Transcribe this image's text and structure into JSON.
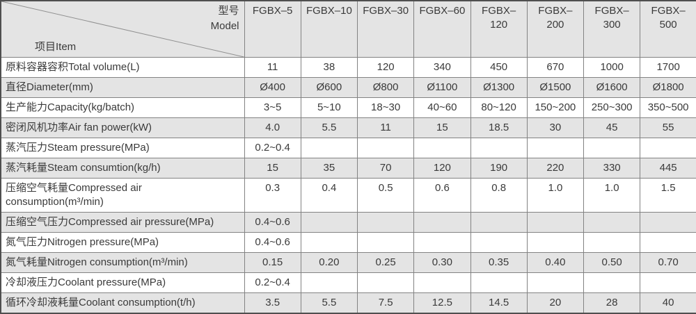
{
  "table": {
    "corner": {
      "model_label": "型号\nModel",
      "item_label": "项目Item"
    },
    "columns": [
      "FGBX–5",
      "FGBX–10",
      "FGBX–30",
      "FGBX–60",
      "FGBX–\n120",
      "FGBX–\n200",
      "FGBX–\n300",
      "FGBX–\n500"
    ],
    "rows": [
      {
        "label": "原料容器容积Total volume(L)",
        "values": [
          "11",
          "38",
          "120",
          "340",
          "450",
          "670",
          "1000",
          "1700"
        ]
      },
      {
        "label": "直径Diameter(mm)",
        "values": [
          "Ø400",
          "Ø600",
          "Ø800",
          "Ø1100",
          "Ø1300",
          "Ø1500",
          "Ø1600",
          "Ø1800"
        ]
      },
      {
        "label": "生产能力Capacity(kg/batch)",
        "values": [
          "3~5",
          "5~10",
          "18~30",
          "40~60",
          "80~120",
          "150~200",
          "250~300",
          "350~500"
        ]
      },
      {
        "label": "密闭风机功率Air fan power(kW)",
        "values": [
          "4.0",
          "5.5",
          "11",
          "15",
          "18.5",
          "30",
          "45",
          "55"
        ]
      },
      {
        "label": "蒸汽压力Steam pressure(MPa)",
        "values": [
          "0.2~0.4",
          "",
          "",
          "",
          "",
          "",
          "",
          ""
        ]
      },
      {
        "label": "蒸汽耗量Steam consumtion(kg/h)",
        "values": [
          "15",
          "35",
          "70",
          "120",
          "190",
          "220",
          "330",
          "445"
        ]
      },
      {
        "label": "压缩空气耗量Compressed air consumption(m³/min)",
        "values": [
          "0.3",
          "0.4",
          "0.5",
          "0.6",
          "0.8",
          "1.0",
          "1.0",
          "1.5"
        ]
      },
      {
        "label": "压缩空气压力Compressed air pressure(MPa)",
        "values": [
          "0.4~0.6",
          "",
          "",
          "",
          "",
          "",
          "",
          ""
        ]
      },
      {
        "label": "氮气压力Nitrogen pressure(MPa)",
        "values": [
          "0.4~0.6",
          "",
          "",
          "",
          "",
          "",
          "",
          ""
        ]
      },
      {
        "label": "氮气耗量Nitrogen consumption(m³/min)",
        "values": [
          "0.15",
          "0.20",
          "0.25",
          "0.30",
          "0.35",
          "0.40",
          "0.50",
          "0.70"
        ]
      },
      {
        "label": "冷却液压力Coolant pressure(MPa)",
        "values": [
          "0.2~0.4",
          "",
          "",
          "",
          "",
          "",
          "",
          ""
        ]
      },
      {
        "label": "循环冷却液耗量Coolant consumption(t/h)",
        "values": [
          "3.5",
          "5.5",
          "7.5",
          "12.5",
          "14.5",
          "20",
          "28",
          "40"
        ]
      }
    ]
  },
  "colors": {
    "row_alt_background": "#e4e4e4",
    "outer_border": "#4f4f4f",
    "inner_border": "#828282",
    "text": "#3a3a3a",
    "diagonal_line": "#909090"
  }
}
